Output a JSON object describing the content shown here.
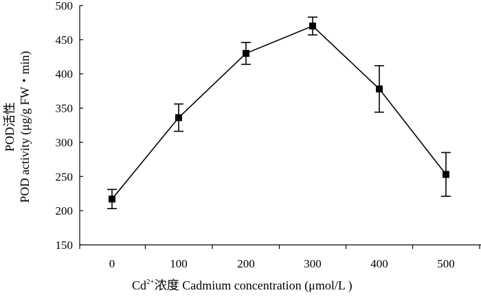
{
  "chart_data": {
    "type": "line",
    "x": [
      0,
      100,
      200,
      300,
      400,
      500
    ],
    "series": [
      {
        "values": [
          217,
          336,
          430,
          470,
          378,
          253
        ],
        "error": [
          14,
          20,
          16,
          13,
          34,
          32
        ]
      }
    ],
    "ylim": [
      150,
      500
    ],
    "y_ticks": [
      "150",
      "200",
      "250",
      "300",
      "350",
      "400",
      "450",
      "500"
    ],
    "x_ticks": [
      "0",
      "100",
      "200",
      "300",
      "400",
      "500"
    ],
    "ylabel_line1": "POD活性",
    "ylabel_line2": "POD activity (μg/g FW・min)",
    "xlabel_prefix": "Cd",
    "xlabel_sup": "2+",
    "xlabel_suffix": "浓度 Cadmium concentration (μmol/L )",
    "grid": false,
    "legend": "none",
    "marker": "square",
    "line_color": "#000000"
  }
}
